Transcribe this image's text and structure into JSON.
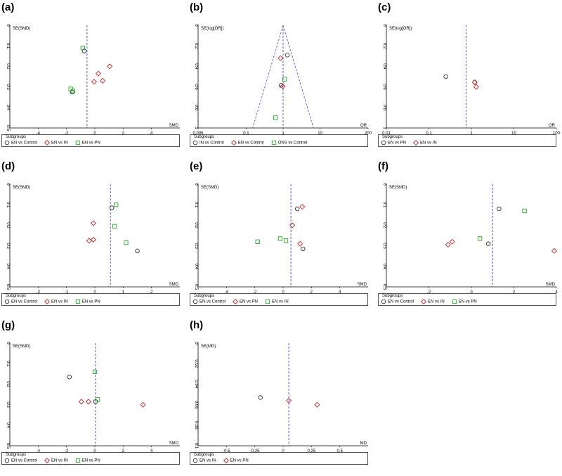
{
  "chart_data": [
    {
      "letter": "(a)",
      "type": "scatter",
      "ylabel": "SE(SMD)",
      "xlabel": "SMD",
      "xlim": [
        -6,
        6
      ],
      "xticks": [
        -4,
        -2,
        0,
        2,
        4
      ],
      "ylim": [
        0,
        0.5
      ],
      "yticks": [
        "0",
        "0.1",
        "0.2",
        "0.3",
        "0.4",
        "0.5"
      ],
      "xtick_labels": [
        "-4",
        "-2",
        "0",
        "2",
        "4"
      ],
      "xscale": "linear",
      "vline": -0.55,
      "funnel": false,
      "legend": {
        "title": "Subgroups",
        "items": [
          {
            "label": "EN vs Control",
            "marker": "circle",
            "color": "#333333"
          },
          {
            "label": "EN vs IN",
            "marker": "diamond",
            "color": "#cc2222"
          },
          {
            "label": "EN vs PN",
            "marker": "square",
            "color": "#22aa22"
          }
        ]
      },
      "series": [
        {
          "marker": "circle",
          "color": "#333333",
          "points": [
            [
              -0.75,
              0.125
            ],
            [
              -1.6,
              0.325
            ]
          ]
        },
        {
          "marker": "diamond",
          "color": "#cc2222",
          "points": [
            [
              1.05,
              0.2
            ],
            [
              0.25,
              0.235
            ],
            [
              0.55,
              0.27
            ],
            [
              -0.05,
              0.275
            ]
          ]
        },
        {
          "marker": "square",
          "color": "#22aa22",
          "points": [
            [
              -0.85,
              0.11
            ],
            [
              -1.7,
              0.31
            ],
            [
              -1.55,
              0.32
            ]
          ]
        }
      ]
    },
    {
      "letter": "(b)",
      "type": "scatter",
      "ylabel": "SE(log[OR])",
      "xlabel": "OR",
      "xscale": "log",
      "xlim": [
        0.005,
        200
      ],
      "xticks": [
        0.005,
        0.1,
        1,
        10,
        200
      ],
      "xtick_labels": [
        "0.005",
        "0.1",
        "1",
        "10",
        "200"
      ],
      "ylim": [
        0,
        1.0
      ],
      "yticks": [
        "0",
        "0.2",
        "0.4",
        "0.6",
        "0.8",
        "1"
      ],
      "vline": 1,
      "funnel": true,
      "legend": {
        "title": "Subgroups",
        "items": [
          {
            "label": "IN vs Control",
            "marker": "circle",
            "color": "#333333"
          },
          {
            "label": "EN vs Control",
            "marker": "diamond",
            "color": "#cc2222"
          },
          {
            "label": "ONS vs Control",
            "marker": "square",
            "color": "#22aa22"
          }
        ]
      },
      "series": [
        {
          "marker": "circle",
          "color": "#333333",
          "points": [
            [
              1.3,
              0.29
            ],
            [
              0.88,
              0.585
            ]
          ]
        },
        {
          "marker": "diamond",
          "color": "#cc2222",
          "points": [
            [
              0.85,
              0.32
            ],
            [
              0.98,
              0.595
            ]
          ]
        },
        {
          "marker": "square",
          "color": "#22aa22",
          "points": [
            [
              1.1,
              0.525
            ],
            [
              0.62,
              0.9
            ]
          ]
        }
      ]
    },
    {
      "letter": "(c)",
      "type": "scatter",
      "ylabel": "SE(log[OR])",
      "xlabel": "OR",
      "xscale": "log",
      "xlim": [
        0.01,
        100
      ],
      "xticks": [
        0.01,
        0.1,
        1,
        10,
        100
      ],
      "xtick_labels": [
        "0.01",
        "0.1",
        "1",
        "10",
        "100"
      ],
      "ylim": [
        0,
        1.0
      ],
      "yticks": [
        "0",
        "0.2",
        "0.4",
        "0.6",
        "0.8",
        "1"
      ],
      "vline": 0.75,
      "funnel": false,
      "legend": {
        "title": "Subgroups",
        "items": [
          {
            "label": "EN vs PN",
            "marker": "circle",
            "color": "#333333"
          },
          {
            "label": "EN vs IN",
            "marker": "diamond",
            "color": "#cc2222"
          }
        ]
      },
      "series": [
        {
          "marker": "circle",
          "color": "#333333",
          "points": [
            [
              0.25,
              0.5
            ],
            [
              1.2,
              0.555
            ]
          ]
        },
        {
          "marker": "diamond",
          "color": "#cc2222",
          "points": [
            [
              1.2,
              0.555
            ],
            [
              1.3,
              0.6
            ]
          ]
        }
      ]
    },
    {
      "letter": "(d)",
      "type": "scatter",
      "ylabel": "SE(SMD)",
      "xlabel": "SMD",
      "xlim": [
        -3,
        3
      ],
      "xticks": [
        -2,
        -1,
        0,
        1,
        2
      ],
      "xtick_labels": [
        "-2",
        "-1",
        "0",
        "1",
        "2"
      ],
      "xscale": "linear",
      "ylim": [
        0,
        0.5
      ],
      "yticks": [
        "0",
        "0.1",
        "0.2",
        "0.3",
        "0.4",
        "0.5"
      ],
      "vline": 0.55,
      "funnel": false,
      "legend": {
        "title": "Subgroups",
        "items": [
          {
            "label": "EN vs Control",
            "marker": "circle",
            "color": "#333333"
          },
          {
            "label": "EN vs IN",
            "marker": "diamond",
            "color": "#cc2222"
          },
          {
            "label": "EN vs PN",
            "marker": "square",
            "color": "#22aa22"
          }
        ]
      },
      "series": [
        {
          "marker": "circle",
          "color": "#333333",
          "points": [
            [
              0.6,
              0.115
            ],
            [
              1.5,
              0.325
            ]
          ]
        },
        {
          "marker": "diamond",
          "color": "#cc2222",
          "points": [
            [
              -0.05,
              0.19
            ],
            [
              -0.2,
              0.275
            ],
            [
              -0.05,
              0.27
            ]
          ]
        },
        {
          "marker": "square",
          "color": "#22aa22",
          "points": [
            [
              0.75,
              0.1
            ],
            [
              0.7,
              0.205
            ],
            [
              1.1,
              0.285
            ]
          ]
        }
      ]
    },
    {
      "letter": "(e)",
      "type": "scatter",
      "ylabel": "SE(SMD)",
      "xlabel": "SMD",
      "xlim": [
        -6,
        6
      ],
      "xticks": [
        -4,
        -2,
        0,
        2,
        4
      ],
      "xtick_labels": [
        "-4",
        "-2",
        "0",
        "2",
        "4"
      ],
      "xscale": "linear",
      "ylim": [
        0,
        0.5
      ],
      "yticks": [
        "0",
        "0.1",
        "0.2",
        "0.3",
        "0.4",
        "0.5"
      ],
      "vline": 0.55,
      "funnel": false,
      "legend": {
        "title": "Subgroups",
        "items": [
          {
            "label": "EN vs Control",
            "marker": "circle",
            "color": "#333333"
          },
          {
            "label": "EN vs PN",
            "marker": "diamond",
            "color": "#cc2222"
          },
          {
            "label": "EN vs IN",
            "marker": "square",
            "color": "#22aa22"
          }
        ]
      },
      "series": [
        {
          "marker": "circle",
          "color": "#333333",
          "points": [
            [
              1.0,
              0.12
            ],
            [
              1.4,
              0.315
            ]
          ]
        },
        {
          "marker": "diamond",
          "color": "#cc2222",
          "points": [
            [
              1.35,
              0.11
            ],
            [
              0.65,
              0.2
            ],
            [
              1.2,
              0.29
            ]
          ]
        },
        {
          "marker": "square",
          "color": "#22aa22",
          "points": [
            [
              -1.8,
              0.28
            ],
            [
              -0.2,
              0.265
            ],
            [
              0.2,
              0.275
            ]
          ]
        }
      ]
    },
    {
      "letter": "(f)",
      "type": "scatter",
      "ylabel": "SE(SMD)",
      "xlabel": "SMD",
      "xlim": [
        -4,
        4
      ],
      "xticks": [
        -2,
        0,
        2,
        4
      ],
      "xtick_labels": [
        "-2",
        "0",
        "2",
        "4"
      ],
      "xscale": "linear",
      "ylim": [
        0,
        0.5
      ],
      "yticks": [
        "0",
        "0.1",
        "0.2",
        "0.3",
        "0.4",
        "0.5"
      ],
      "vline": 1.0,
      "funnel": false,
      "legend": {
        "title": "Subgroups",
        "items": [
          {
            "label": "EN vs Control",
            "marker": "circle",
            "color": "#333333"
          },
          {
            "label": "EN vs IN",
            "marker": "diamond",
            "color": "#cc2222"
          },
          {
            "label": "EN vs PN",
            "marker": "square",
            "color": "#22aa22"
          }
        ]
      },
      "series": [
        {
          "marker": "circle",
          "color": "#333333",
          "points": [
            [
              1.3,
              0.12
            ],
            [
              0.8,
              0.29
            ]
          ]
        },
        {
          "marker": "diamond",
          "color": "#cc2222",
          "points": [
            [
              -1.1,
              0.295
            ],
            [
              -0.9,
              0.28
            ],
            [
              3.9,
              0.325
            ]
          ]
        },
        {
          "marker": "square",
          "color": "#22aa22",
          "points": [
            [
              2.5,
              0.13
            ],
            [
              0.4,
              0.265
            ]
          ]
        }
      ]
    },
    {
      "letter": "(g)",
      "type": "scatter",
      "ylabel": "SE(SMD)",
      "xlabel": "SMD",
      "xlim": [
        -6,
        6
      ],
      "xticks": [
        -4,
        -2,
        0,
        2,
        4
      ],
      "xtick_labels": [
        "-4",
        "-2",
        "0",
        "2",
        "4"
      ],
      "xscale": "linear",
      "ylim": [
        0,
        0.5
      ],
      "yticks": [
        "0",
        "0.1",
        "0.2",
        "0.3",
        "0.4",
        "0.5"
      ],
      "vline": 0.05,
      "funnel": false,
      "legend": {
        "title": "Subgroups",
        "items": [
          {
            "label": "EN vs Control",
            "marker": "circle",
            "color": "#333333"
          },
          {
            "label": "EN vs IN",
            "marker": "diamond",
            "color": "#cc2222"
          },
          {
            "label": "EN vs PN",
            "marker": "square",
            "color": "#22aa22"
          }
        ]
      },
      "series": [
        {
          "marker": "circle",
          "color": "#333333",
          "points": [
            [
              -1.8,
              0.165
            ],
            [
              0.05,
              0.285
            ]
          ]
        },
        {
          "marker": "diamond",
          "color": "#cc2222",
          "points": [
            [
              -0.95,
              0.285
            ],
            [
              -0.45,
              0.285
            ],
            [
              3.4,
              0.3
            ]
          ]
        },
        {
          "marker": "square",
          "color": "#22aa22",
          "points": [
            [
              0.0,
              0.14
            ],
            [
              0.2,
              0.275
            ]
          ]
        }
      ]
    },
    {
      "letter": "(h)",
      "type": "scatter",
      "ylabel": "SE(MD)",
      "xlabel": "MD",
      "xlim": [
        -0.75,
        0.75
      ],
      "xticks": [
        -0.5,
        -0.25,
        0,
        0.25,
        0.5
      ],
      "xtick_labels": [
        "-0.5",
        "-0.25",
        "0",
        "0.25",
        "0.5"
      ],
      "xscale": "linear",
      "ylim": [
        0,
        0.1
      ],
      "yticks": [
        "0",
        "0.02",
        "0.04",
        "0.06",
        "0.08",
        "0.1"
      ],
      "vline": 0.05,
      "funnel": false,
      "legend": {
        "title": "Subgroups",
        "items": [
          {
            "label": "EN vs IN",
            "marker": "circle",
            "color": "#333333"
          },
          {
            "label": "EN vs PN",
            "marker": "diamond",
            "color": "#cc2222"
          }
        ]
      },
      "series": [
        {
          "marker": "circle",
          "color": "#333333",
          "points": [
            [
              -0.2,
              0.053
            ]
          ]
        },
        {
          "marker": "diamond",
          "color": "#cc2222",
          "points": [
            [
              0.05,
              0.056
            ],
            [
              0.3,
              0.06
            ]
          ]
        }
      ]
    }
  ]
}
